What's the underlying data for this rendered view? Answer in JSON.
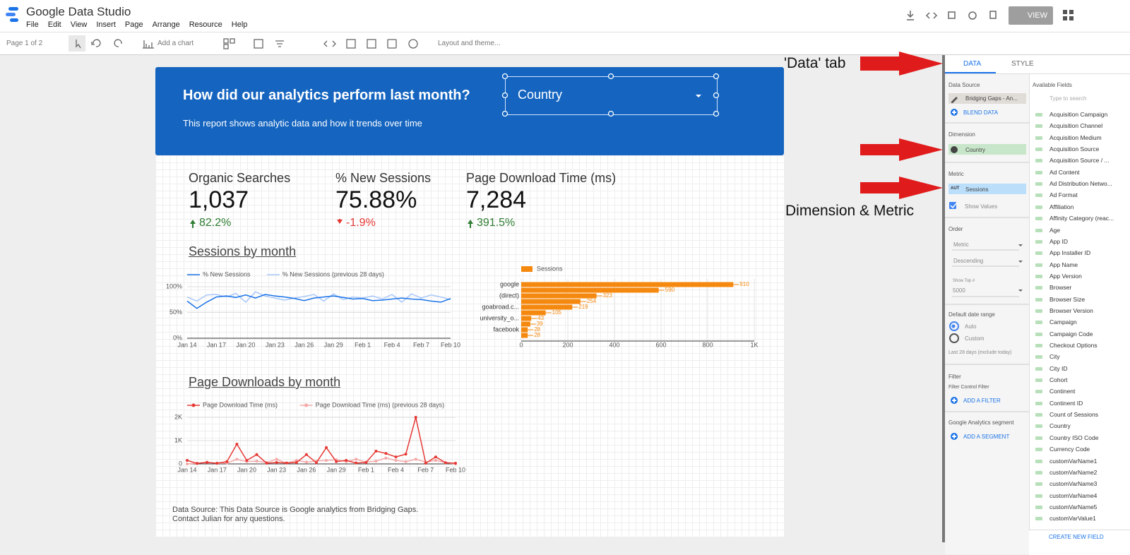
{
  "app": {
    "title": "Google Data Studio",
    "menu": [
      "File",
      "Edit",
      "View",
      "Insert",
      "Page",
      "Arrange",
      "Resource",
      "Help"
    ],
    "view_button": "VIEW"
  },
  "toolbar": {
    "page": "Page 1 of 2",
    "add_chart": "Add a chart",
    "layout": "Layout and theme..."
  },
  "report": {
    "header": {
      "title": "How did our analytics perform last month?",
      "subtitle": "This report shows analytic data and how it trends over time",
      "filter": "Country"
    },
    "scorecards": [
      {
        "label": "Organic Searches",
        "value": "1,037",
        "change": "82.2%",
        "trend": "up"
      },
      {
        "label": "% New Sessions",
        "value": "75.88%",
        "change": "-1.9%",
        "trend": "down"
      },
      {
        "label": "Page Download Time (ms)",
        "value": "7,284",
        "change": "391.5%",
        "trend": "up"
      }
    ],
    "footer": [
      "Data Source: This Data Source is Google analytics from Bridging Gaps.",
      "Contact Julian for any questions."
    ]
  },
  "chart_data": [
    {
      "type": "line",
      "title": "Sessions by month",
      "categories": [
        "Jan 14",
        null,
        null,
        "Jan 17",
        null,
        null,
        "Jan 20",
        null,
        null,
        "Jan 23",
        null,
        null,
        "Jan 26",
        null,
        null,
        "Jan 29",
        null,
        null,
        "Feb 1",
        null,
        null,
        "Feb 4",
        null,
        null,
        "Feb 7",
        null,
        null,
        "Feb 10"
      ],
      "series": [
        {
          "name": "% New Sessions",
          "color": "#1a73e8",
          "values": [
            72,
            58,
            70,
            80,
            82,
            79,
            84,
            78,
            85,
            82,
            80,
            77,
            73,
            78,
            80,
            82,
            79,
            76,
            77,
            73,
            74,
            76,
            78,
            76,
            75,
            72,
            70,
            77
          ]
        },
        {
          "name": "% New Sessions (previous 28 days)",
          "color": "#a8c7fa",
          "values": [
            80,
            72,
            84,
            85,
            80,
            87,
            70,
            90,
            82,
            78,
            74,
            78,
            81,
            85,
            72,
            86,
            75,
            80,
            78,
            82,
            76,
            85,
            70,
            86,
            78,
            84,
            80,
            75
          ]
        }
      ],
      "ylim": [
        0,
        100
      ],
      "yticks": [
        {
          "value": 0,
          "label": "0%"
        },
        {
          "value": 50,
          "label": "50%"
        },
        {
          "value": 100,
          "label": "100%"
        }
      ],
      "grid": true
    },
    {
      "type": "bar",
      "orientation": "horizontal",
      "categories": [
        "google",
        null,
        "(direct)",
        null,
        "goabroad.c...",
        null,
        "university_o...",
        null,
        "facebook",
        null
      ],
      "series": [
        {
          "name": "Sessions",
          "color": "#f5880e",
          "values": [
            910,
            590,
            323,
            254,
            219,
            105,
            43,
            39,
            28,
            28
          ]
        }
      ],
      "xlim": [
        0,
        1000
      ],
      "xticks": [
        0,
        200,
        400,
        600,
        800,
        {
          "value": 1000,
          "label": "1K"
        }
      ],
      "grid": true,
      "show_values": true
    },
    {
      "type": "line",
      "title": "Page Downloads by month",
      "markers": true,
      "categories": [
        "Jan 14",
        null,
        null,
        "Jan 17",
        null,
        null,
        "Jan 20",
        null,
        null,
        "Jan 23",
        null,
        null,
        "Jan 26",
        null,
        null,
        "Jan 29",
        null,
        null,
        "Feb 1",
        null,
        null,
        "Feb 4",
        null,
        null,
        "Feb 7",
        null,
        null,
        "Feb 10"
      ],
      "series": [
        {
          "name": "Page Download Time (ms)",
          "color": "#e53935",
          "values": [
            150,
            20,
            60,
            30,
            100,
            850,
            150,
            400,
            30,
            60,
            40,
            60,
            400,
            50,
            700,
            100,
            150,
            40,
            60,
            550,
            450,
            300,
            420,
            2000,
            30,
            300,
            50,
            30
          ]
        },
        {
          "name": "Page Download Time (ms) (previous 28 days)",
          "color": "#f4a8a8",
          "values": [
            0,
            30,
            80,
            20,
            40,
            200,
            100,
            120,
            60,
            200,
            30,
            150,
            80,
            120,
            150,
            180,
            100,
            200,
            80,
            120,
            250,
            150,
            100,
            200,
            80,
            150,
            50,
            0
          ]
        }
      ],
      "ylim": [
        0,
        2000
      ],
      "yticks": [
        0,
        {
          "value": 1000,
          "label": "1K"
        },
        {
          "value": 2000,
          "label": "2K"
        }
      ],
      "grid": true
    }
  ],
  "annotations": [
    "'Data' tab",
    "Dimension & Metric"
  ],
  "panel": {
    "tabs": [
      "DATA",
      "STYLE"
    ],
    "data_source_label": "Data Source",
    "data_source": "Bridging Gaps - An...",
    "blend": "BLEND DATA",
    "dimension_label": "Dimension",
    "dimension": "Country",
    "metric_label": "Metric",
    "metric_badge": "AUT",
    "metric": "Sessions",
    "show_values": "Show Values",
    "order_label": "Order",
    "order_by": "Metric",
    "order_dir": "Descending",
    "top_label": "Show Top #",
    "top": "5000",
    "date_label": "Default date range",
    "date_auto": "Auto",
    "date_custom": "Custom",
    "date_note": "Last 28 days (exclude today)",
    "filter_label": "Filter",
    "filter_sub": "Filter Control Filter",
    "add_filter": "ADD A FILTER",
    "segment_label": "Google Analytics segment",
    "add_segment": "ADD A SEGMENT",
    "fields_label": "Available Fields",
    "search": "Type to search",
    "create_field": "CREATE NEW FIELD",
    "fields": [
      "Acquisition Campaign",
      "Acquisition Channel",
      "Acquisition Medium",
      "Acquisition Source",
      "Acquisition Source / ...",
      "Ad Content",
      "Ad Distribution Netwo...",
      "Ad Format",
      "Affiliation",
      "Affinity Category (reac...",
      "Age",
      "App ID",
      "App Installer ID",
      "App Name",
      "App Version",
      "Browser",
      "Browser Size",
      "Browser Version",
      "Campaign",
      "Campaign Code",
      "Checkout Options",
      "City",
      "City ID",
      "Cohort",
      "Continent",
      "Continent ID",
      "Count of Sessions",
      "Country",
      "Country ISO Code",
      "Currency Code",
      "customVarName1",
      "customVarName2",
      "customVarName3",
      "customVarName4",
      "customVarName5",
      "customVarValue1"
    ]
  }
}
